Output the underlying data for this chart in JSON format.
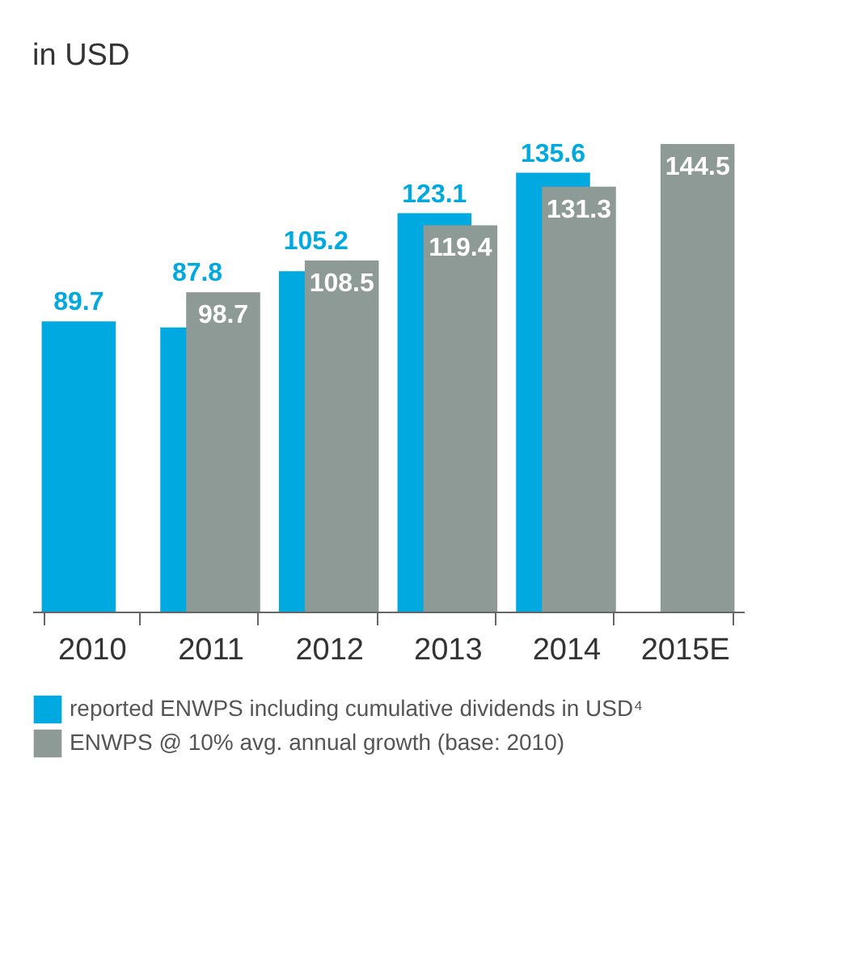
{
  "chart_data": {
    "type": "bar",
    "ylabel": "in USD",
    "categories": [
      "2010",
      "2011",
      "2012",
      "2013",
      "2014",
      "2015E"
    ],
    "series": [
      {
        "name": "reported ENWPS including cumulative dividends in USD⁴",
        "color": "#00a9e0",
        "values": [
          89.7,
          87.8,
          105.2,
          123.1,
          135.6,
          null
        ]
      },
      {
        "name": "ENWPS @ 10% avg. annual growth (base: 2010)",
        "color": "#8e9a95",
        "values": [
          null,
          98.7,
          108.5,
          119.4,
          131.3,
          144.5
        ]
      }
    ],
    "data_labels": true,
    "legend": "bottom"
  }
}
